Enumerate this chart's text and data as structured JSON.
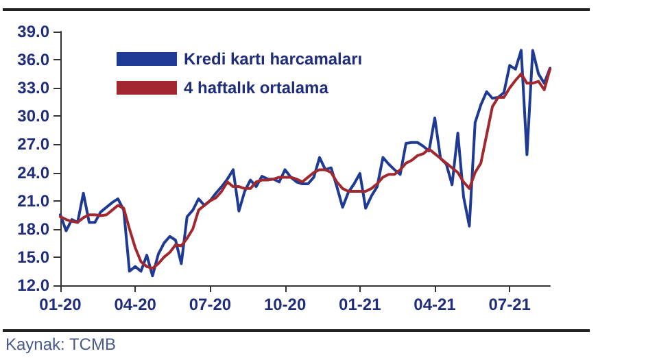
{
  "chart_data": {
    "type": "line",
    "categories": [
      "01-20",
      null,
      null,
      null,
      null,
      null,
      null,
      null,
      null,
      null,
      null,
      null,
      null,
      "04-20",
      null,
      null,
      null,
      null,
      null,
      null,
      null,
      null,
      null,
      null,
      null,
      null,
      "07-20",
      null,
      null,
      null,
      null,
      null,
      null,
      null,
      null,
      null,
      null,
      null,
      null,
      "10-20",
      null,
      null,
      null,
      null,
      null,
      null,
      null,
      null,
      null,
      null,
      null,
      null,
      "01-21",
      null,
      null,
      null,
      null,
      null,
      null,
      null,
      null,
      null,
      null,
      null,
      null,
      "04-21",
      null,
      null,
      null,
      null,
      null,
      null,
      null,
      null,
      null,
      null,
      null,
      null,
      "07-21",
      null,
      null,
      null,
      null,
      null,
      null,
      null
    ],
    "series": [
      {
        "name": "Kredi kartı harcamaları",
        "color": "#1f3a93",
        "values": [
          19.5,
          17.8,
          19.0,
          18.7,
          21.8,
          18.7,
          18.7,
          19.8,
          20.3,
          20.8,
          21.2,
          20.0,
          13.5,
          14.0,
          13.5,
          15.2,
          13.0,
          15.3,
          16.5,
          17.2,
          16.8,
          14.3,
          19.3,
          20.0,
          21.2,
          20.5,
          21.0,
          21.8,
          22.5,
          23.3,
          24.3,
          19.9,
          22.0,
          23.2,
          22.5,
          23.6,
          23.3,
          23.3,
          23.0,
          24.3,
          23.5,
          23.0,
          22.8,
          22.8,
          23.5,
          25.6,
          24.3,
          24.5,
          22.5,
          20.3,
          21.9,
          22.8,
          23.9,
          20.2,
          21.5,
          22.5,
          25.6,
          24.9,
          24.3,
          23.8,
          27.1,
          27.2,
          27.2,
          26.8,
          26.3,
          29.8,
          25.5,
          24.9,
          22.7,
          28.2,
          21.4,
          18.3,
          29.3,
          31.2,
          32.6,
          31.9,
          32.0,
          32.5,
          35.4,
          35.0,
          37.0,
          25.9,
          37.0,
          34.5,
          33.5,
          35.1
        ]
      },
      {
        "name": "4 haftalık ortalama",
        "color": "#a0282e",
        "values": [
          19.3,
          19.0,
          18.8,
          18.7,
          19.2,
          19.5,
          19.5,
          19.4,
          19.5,
          20.0,
          20.5,
          20.2,
          18.0,
          16.0,
          14.5,
          14.0,
          13.8,
          14.3,
          15.0,
          15.5,
          16.3,
          16.2,
          17.0,
          18.0,
          20.0,
          20.5,
          21.0,
          21.3,
          22.0,
          23.0,
          22.5,
          22.5,
          22.3,
          22.3,
          23.0,
          23.2,
          23.2,
          23.3,
          23.5,
          23.5,
          23.5,
          23.3,
          23.0,
          23.5,
          24.0,
          24.3,
          24.3,
          24.0,
          23.0,
          22.3,
          22.0,
          22.0,
          22.0,
          22.0,
          22.3,
          22.8,
          23.5,
          23.8,
          23.8,
          24.3,
          25.0,
          25.3,
          25.8,
          26.0,
          26.5,
          26.0,
          25.5,
          25.0,
          24.5,
          24.0,
          23.0,
          22.3,
          24.0,
          25.0,
          28.0,
          31.0,
          32.0,
          32.0,
          33.0,
          33.8,
          34.5,
          33.5,
          33.5,
          33.7,
          32.8,
          35.0
        ]
      }
    ],
    "ylim": [
      12,
      39
    ],
    "yticks": [
      {
        "value": 12,
        "label": "12.0"
      },
      {
        "value": 15,
        "label": "15.0"
      },
      {
        "value": 18,
        "label": "18.0"
      },
      {
        "value": 21,
        "label": "21.0"
      },
      {
        "value": 24,
        "label": "24.0"
      },
      {
        "value": 27,
        "label": "27.0"
      },
      {
        "value": 30,
        "label": "30.0"
      },
      {
        "value": 33,
        "label": "33.0"
      },
      {
        "value": 36,
        "label": "36.0"
      },
      {
        "value": 39,
        "label": "39.0"
      }
    ],
    "grid": false,
    "legend": "top left",
    "marker": "none",
    "line_style": "solid",
    "annotations": [
      "Kaynak: TCMB"
    ]
  }
}
